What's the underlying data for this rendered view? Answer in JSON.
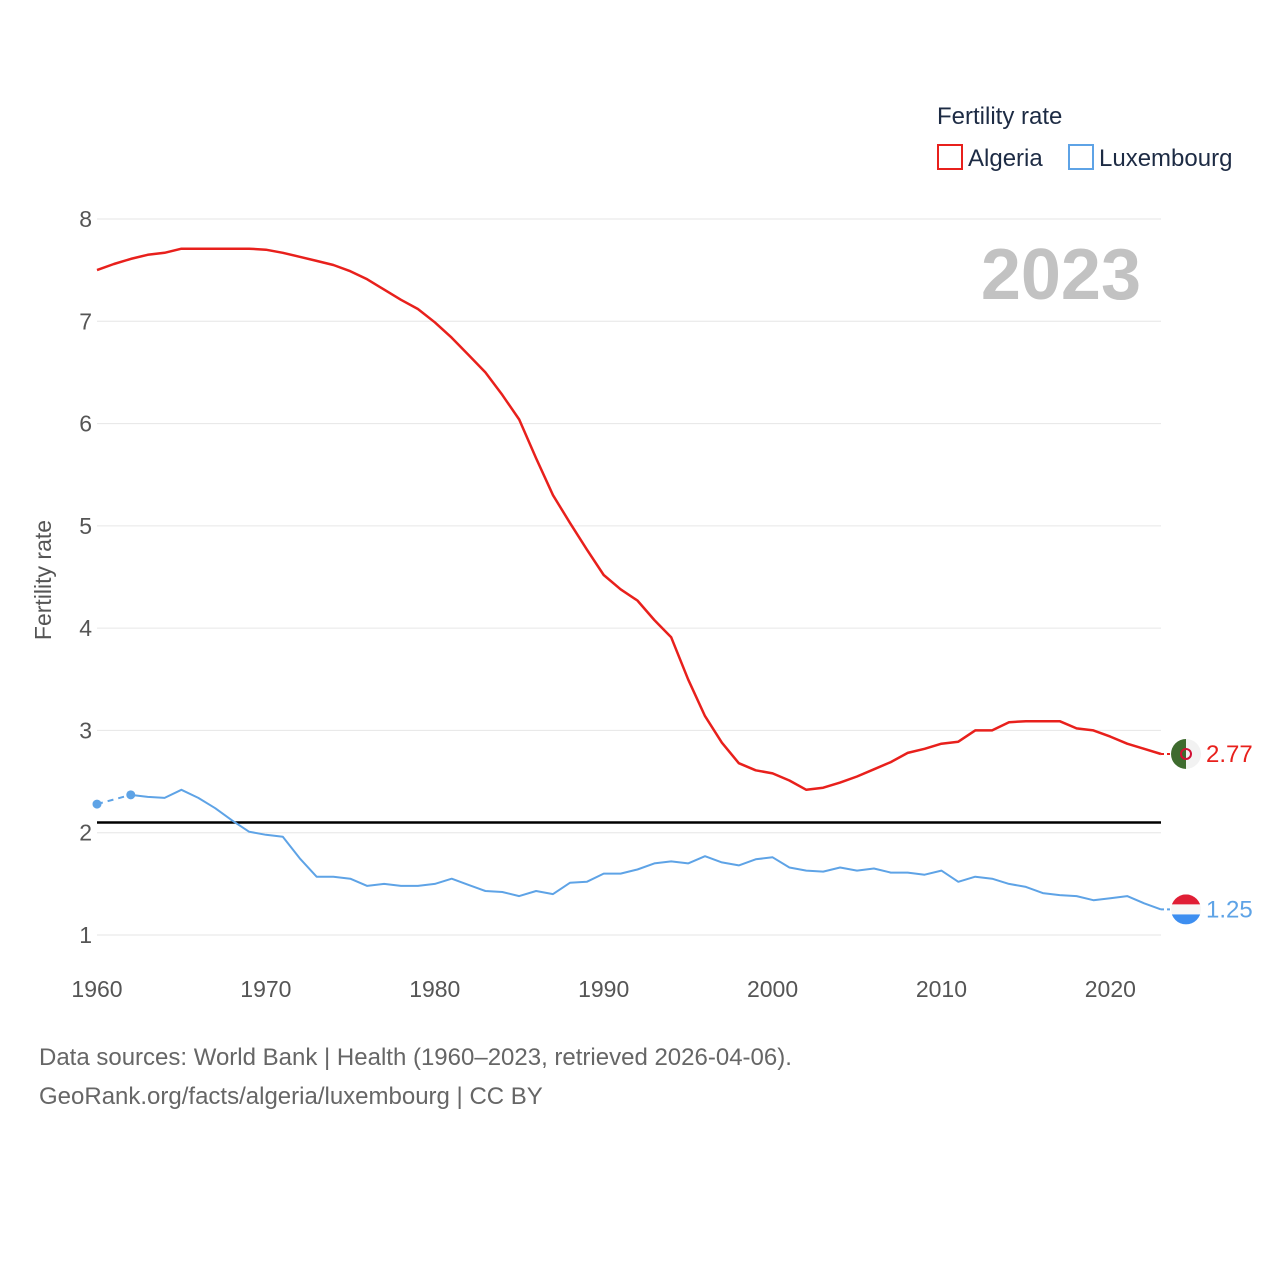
{
  "chart_data": {
    "type": "line",
    "ylabel": "Fertility rate",
    "xlabel": "",
    "legend_title": "Fertility rate",
    "legend_position": "top-right",
    "current_year_label": "2023",
    "xlim": [
      1960,
      2023
    ],
    "ylim": [
      0.95,
      8
    ],
    "x_ticks": [
      1960,
      1970,
      1980,
      1990,
      2000,
      2010,
      2020
    ],
    "y_ticks": [
      1,
      2,
      3,
      4,
      5,
      6,
      7,
      8
    ],
    "grid": true,
    "reference_line": {
      "y": 2.1,
      "color": "#000000"
    },
    "series": [
      {
        "name": "Algeria",
        "color": "#e8201c",
        "end_label": "2.77",
        "flag": "algeria-flag",
        "points": [
          [
            1960,
            7.5
          ],
          [
            1961,
            7.56
          ],
          [
            1962,
            7.61
          ],
          [
            1963,
            7.65
          ],
          [
            1964,
            7.67
          ],
          [
            1965,
            7.71
          ],
          [
            1966,
            7.71
          ],
          [
            1967,
            7.71
          ],
          [
            1968,
            7.71
          ],
          [
            1969,
            7.71
          ],
          [
            1970,
            7.7
          ],
          [
            1971,
            7.67
          ],
          [
            1972,
            7.63
          ],
          [
            1973,
            7.59
          ],
          [
            1974,
            7.55
          ],
          [
            1975,
            7.49
          ],
          [
            1976,
            7.41
          ],
          [
            1977,
            7.31
          ],
          [
            1978,
            7.21
          ],
          [
            1979,
            7.12
          ],
          [
            1980,
            6.99
          ],
          [
            1981,
            6.84
          ],
          [
            1982,
            6.67
          ],
          [
            1983,
            6.5
          ],
          [
            1984,
            6.28
          ],
          [
            1985,
            6.04
          ],
          [
            1986,
            5.66
          ],
          [
            1987,
            5.3
          ],
          [
            1988,
            5.03
          ],
          [
            1989,
            4.77
          ],
          [
            1990,
            4.52
          ],
          [
            1991,
            4.38
          ],
          [
            1992,
            4.27
          ],
          [
            1993,
            4.08
          ],
          [
            1994,
            3.91
          ],
          [
            1995,
            3.5
          ],
          [
            1996,
            3.14
          ],
          [
            1997,
            2.88
          ],
          [
            1998,
            2.68
          ],
          [
            1999,
            2.61
          ],
          [
            2000,
            2.58
          ],
          [
            2001,
            2.51
          ],
          [
            2002,
            2.42
          ],
          [
            2003,
            2.44
          ],
          [
            2004,
            2.49
          ],
          [
            2005,
            2.55
          ],
          [
            2006,
            2.62
          ],
          [
            2007,
            2.69
          ],
          [
            2008,
            2.78
          ],
          [
            2009,
            2.82
          ],
          [
            2010,
            2.87
          ],
          [
            2011,
            2.89
          ],
          [
            2012,
            3.0
          ],
          [
            2013,
            3.0
          ],
          [
            2014,
            3.08
          ],
          [
            2015,
            3.09
          ],
          [
            2016,
            3.09
          ],
          [
            2017,
            3.09
          ],
          [
            2018,
            3.02
          ],
          [
            2019,
            3.0
          ],
          [
            2020,
            2.94
          ],
          [
            2021,
            2.87
          ],
          [
            2022,
            2.82
          ],
          [
            2023,
            2.77
          ]
        ]
      },
      {
        "name": "Luxembourg",
        "color": "#5ea3e6",
        "end_label": "1.25",
        "flag": "luxembourg-flag",
        "estimated_points": [
          [
            1960,
            2.28
          ],
          [
            1962,
            2.37
          ]
        ],
        "points": [
          [
            1962,
            2.37
          ],
          [
            1963,
            2.35
          ],
          [
            1964,
            2.34
          ],
          [
            1965,
            2.42
          ],
          [
            1966,
            2.34
          ],
          [
            1967,
            2.24
          ],
          [
            1968,
            2.12
          ],
          [
            1969,
            2.01
          ],
          [
            1970,
            1.98
          ],
          [
            1971,
            1.96
          ],
          [
            1972,
            1.75
          ],
          [
            1973,
            1.57
          ],
          [
            1974,
            1.57
          ],
          [
            1975,
            1.55
          ],
          [
            1976,
            1.48
          ],
          [
            1977,
            1.5
          ],
          [
            1978,
            1.48
          ],
          [
            1979,
            1.48
          ],
          [
            1980,
            1.5
          ],
          [
            1981,
            1.55
          ],
          [
            1982,
            1.49
          ],
          [
            1983,
            1.43
          ],
          [
            1984,
            1.42
          ],
          [
            1985,
            1.38
          ],
          [
            1986,
            1.43
          ],
          [
            1987,
            1.4
          ],
          [
            1988,
            1.51
          ],
          [
            1989,
            1.52
          ],
          [
            1990,
            1.6
          ],
          [
            1991,
            1.6
          ],
          [
            1992,
            1.64
          ],
          [
            1993,
            1.7
          ],
          [
            1994,
            1.72
          ],
          [
            1995,
            1.7
          ],
          [
            1996,
            1.77
          ],
          [
            1997,
            1.71
          ],
          [
            1998,
            1.68
          ],
          [
            1999,
            1.74
          ],
          [
            2000,
            1.76
          ],
          [
            2001,
            1.66
          ],
          [
            2002,
            1.63
          ],
          [
            2003,
            1.62
          ],
          [
            2004,
            1.66
          ],
          [
            2005,
            1.63
          ],
          [
            2006,
            1.65
          ],
          [
            2007,
            1.61
          ],
          [
            2008,
            1.61
          ],
          [
            2009,
            1.59
          ],
          [
            2010,
            1.63
          ],
          [
            2011,
            1.52
          ],
          [
            2012,
            1.57
          ],
          [
            2013,
            1.55
          ],
          [
            2014,
            1.5
          ],
          [
            2015,
            1.47
          ],
          [
            2016,
            1.41
          ],
          [
            2017,
            1.39
          ],
          [
            2018,
            1.38
          ],
          [
            2019,
            1.34
          ],
          [
            2020,
            1.36
          ],
          [
            2021,
            1.38
          ],
          [
            2022,
            1.31
          ],
          [
            2023,
            1.25
          ]
        ]
      }
    ]
  },
  "footer": {
    "source_line": "Data sources: World Bank | Health (1960–2023, retrieved 2026-04-06).",
    "url_line": "GeoRank.org/facts/algeria/luxembourg | CC BY"
  }
}
